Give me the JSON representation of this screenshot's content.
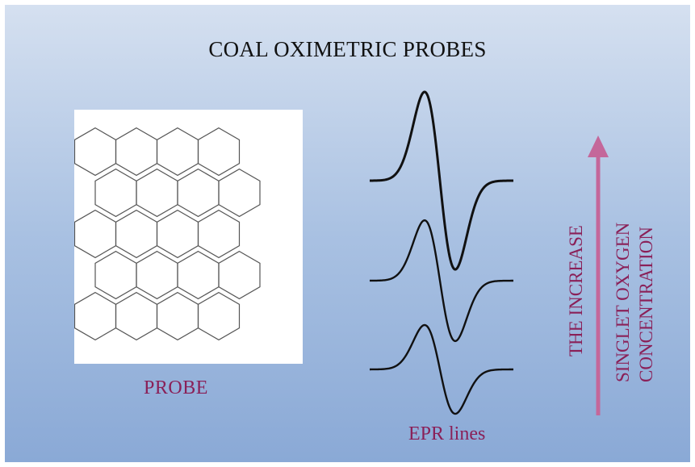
{
  "title": "COAL OXIMETRIC PROBES",
  "probe": {
    "label": "PROBE",
    "rows": 5,
    "cols": 4
  },
  "epr": {
    "label": "EPR lines",
    "lines": [
      {
        "amplitude": 1.0
      },
      {
        "amplitude": 0.68
      },
      {
        "amplitude": 0.5
      }
    ]
  },
  "trend": {
    "line1": "THE INCREASE",
    "line2": "SINGLET OXYGEN",
    "line3": "CONCENTRATION"
  },
  "colors": {
    "panel_top": "#d5e0f0",
    "panel_bottom": "#8aa9d6",
    "label": "#8a2058",
    "arrow": "#c4679a",
    "ink": "#111111"
  }
}
